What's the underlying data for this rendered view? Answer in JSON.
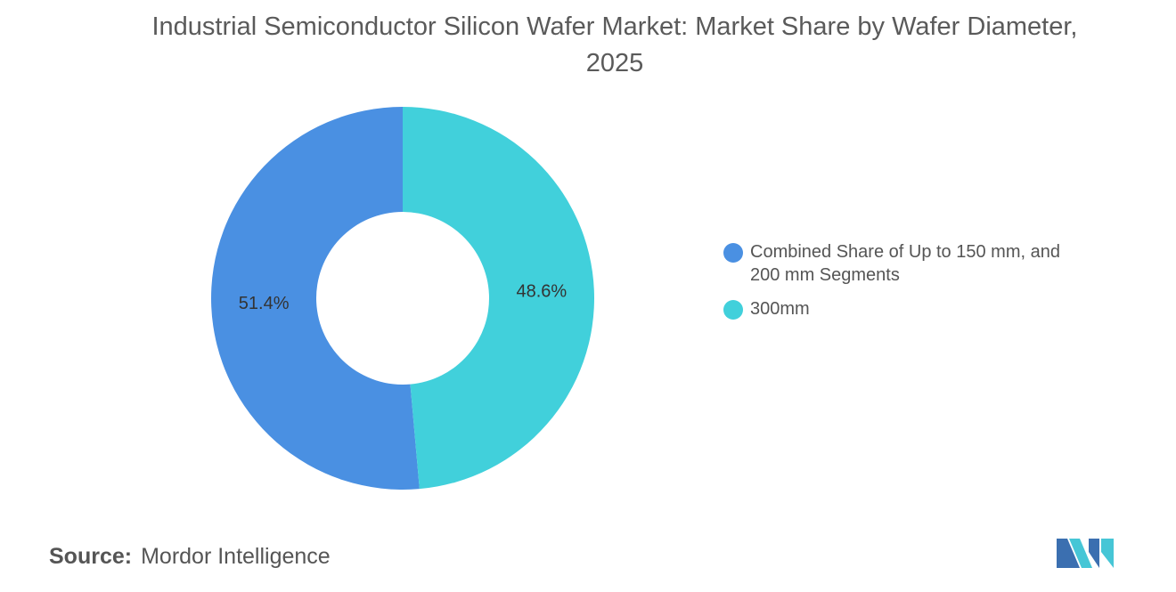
{
  "chart_data": {
    "type": "pie",
    "title": "Industrial Semiconductor Silicon Wafer Market: Market Share by Wafer Diameter, 2025",
    "categories": [
      "Combined Share of Up to 150 mm, and 200 mm Segments",
      "300mm"
    ],
    "values": [
      51.4,
      48.6
    ],
    "value_labels": [
      "51.4%",
      "48.6%"
    ],
    "colors": [
      "#4a90e2",
      "#41d0db"
    ],
    "donut": true,
    "legend": "right",
    "source_label": "Source:",
    "source": "Mordor Intelligence"
  }
}
